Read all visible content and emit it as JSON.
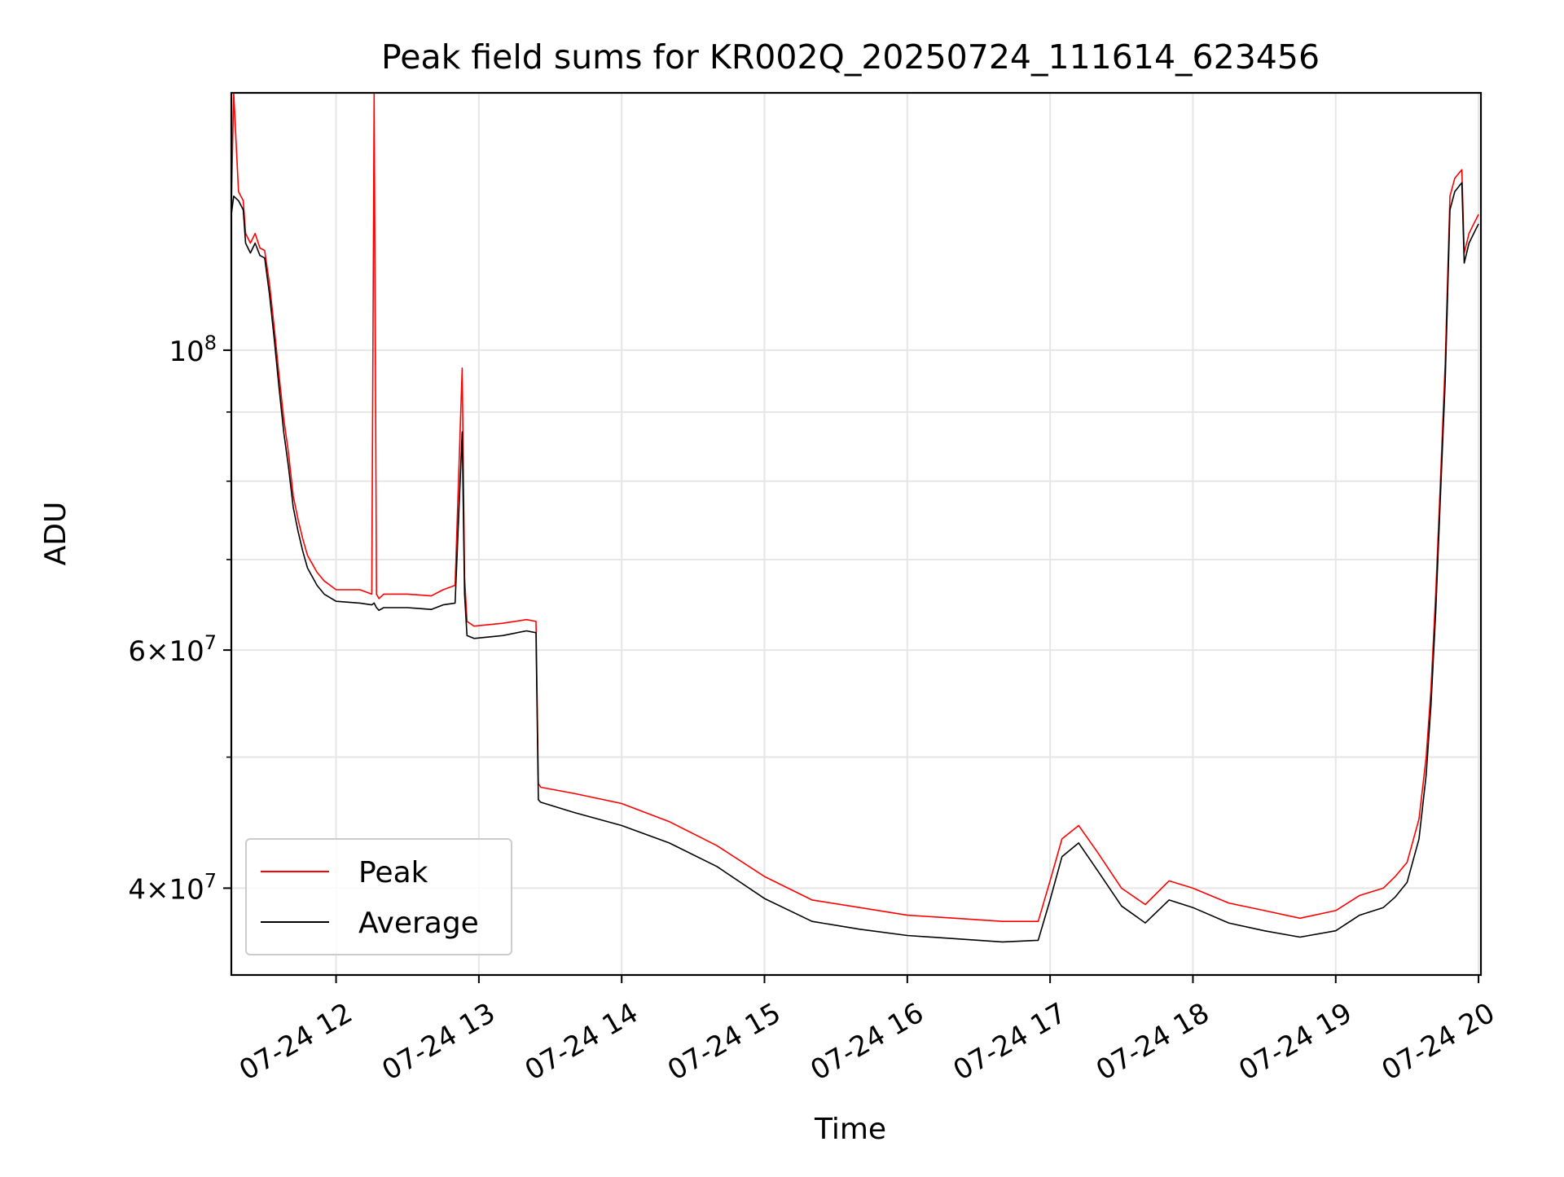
{
  "chart_data": {
    "type": "line",
    "title": "Peak field sums for KR002Q_20250724_111614_623456",
    "xlabel": "Time",
    "ylabel": "ADU",
    "yscale": "log",
    "xlim": [
      "2025-07-24 11:16",
      "2025-07-24 20:01"
    ],
    "ylim": [
      34500000,
      155000000
    ],
    "grid": true,
    "legend_position": "lower-left",
    "x_ticks": [
      {
        "value": "2025-07-24 12:00",
        "label": "07-24 12"
      },
      {
        "value": "2025-07-24 13:00",
        "label": "07-24 13"
      },
      {
        "value": "2025-07-24 14:00",
        "label": "07-24 14"
      },
      {
        "value": "2025-07-24 15:00",
        "label": "07-24 15"
      },
      {
        "value": "2025-07-24 16:00",
        "label": "07-24 16"
      },
      {
        "value": "2025-07-24 17:00",
        "label": "07-24 17"
      },
      {
        "value": "2025-07-24 18:00",
        "label": "07-24 18"
      },
      {
        "value": "2025-07-24 19:00",
        "label": "07-24 19"
      },
      {
        "value": "2025-07-24 20:00",
        "label": "07-24 20"
      }
    ],
    "y_ticks": [
      {
        "value": 40000000,
        "mantissa": "4",
        "exponent": "7"
      },
      {
        "value": 60000000,
        "mantissa": "6",
        "exponent": "7"
      },
      {
        "value": 100000000,
        "mantissa": "10",
        "exponent": "8"
      }
    ],
    "y_minor_ticks": [
      50000000,
      70000000,
      80000000,
      90000000
    ],
    "series": [
      {
        "name": "Peak",
        "color": "#ff0000",
        "x": [
          "2025-07-24 11:16",
          "2025-07-24 11:17",
          "2025-07-24 11:19",
          "2025-07-24 11:21",
          "2025-07-24 11:22",
          "2025-07-24 11:24",
          "2025-07-24 11:26",
          "2025-07-24 11:28",
          "2025-07-24 11:30",
          "2025-07-24 11:32",
          "2025-07-24 11:34",
          "2025-07-24 11:36",
          "2025-07-24 11:38",
          "2025-07-24 11:40",
          "2025-07-24 11:42",
          "2025-07-24 11:44",
          "2025-07-24 11:46",
          "2025-07-24 11:48",
          "2025-07-24 11:50",
          "2025-07-24 11:52",
          "2025-07-24 11:55",
          "2025-07-24 12:00",
          "2025-07-24 12:10",
          "2025-07-24 12:15",
          "2025-07-24 12:16",
          "2025-07-24 12:17",
          "2025-07-24 12:18",
          "2025-07-24 12:20",
          "2025-07-24 12:30",
          "2025-07-24 12:40",
          "2025-07-24 12:45",
          "2025-07-24 12:50",
          "2025-07-24 12:53",
          "2025-07-24 12:54",
          "2025-07-24 12:55",
          "2025-07-24 12:58",
          "2025-07-24 13:10",
          "2025-07-24 13:20",
          "2025-07-24 13:24",
          "2025-07-24 13:25",
          "2025-07-24 13:26",
          "2025-07-24 13:40",
          "2025-07-24 14:00",
          "2025-07-24 14:20",
          "2025-07-24 14:40",
          "2025-07-24 15:00",
          "2025-07-24 15:20",
          "2025-07-24 15:40",
          "2025-07-24 16:00",
          "2025-07-24 16:20",
          "2025-07-24 16:40",
          "2025-07-24 16:55",
          "2025-07-24 17:00",
          "2025-07-24 17:05",
          "2025-07-24 17:12",
          "2025-07-24 17:20",
          "2025-07-24 17:30",
          "2025-07-24 17:40",
          "2025-07-24 17:50",
          "2025-07-24 18:00",
          "2025-07-24 18:15",
          "2025-07-24 18:30",
          "2025-07-24 18:45",
          "2025-07-24 19:00",
          "2025-07-24 19:10",
          "2025-07-24 19:20",
          "2025-07-24 19:25",
          "2025-07-24 19:30",
          "2025-07-24 19:35",
          "2025-07-24 19:38",
          "2025-07-24 19:40",
          "2025-07-24 19:42",
          "2025-07-24 19:44",
          "2025-07-24 19:46",
          "2025-07-24 19:48",
          "2025-07-24 19:50",
          "2025-07-24 19:53",
          "2025-07-24 19:54",
          "2025-07-24 19:56",
          "2025-07-24 19:58",
          "2025-07-24 20:00"
        ],
        "y": [
          128000000,
          155000000,
          131000000,
          129000000,
          122000000,
          120000000,
          122000000,
          119000000,
          118500000,
          112000000,
          104000000,
          96000000,
          89000000,
          84000000,
          78000000,
          75000000,
          72500000,
          70500000,
          69500000,
          68500000,
          67500000,
          66500000,
          66500000,
          66000000,
          155000000,
          66000000,
          65500000,
          66000000,
          66000000,
          65800000,
          66500000,
          67000000,
          97000000,
          68000000,
          63000000,
          62500000,
          62800000,
          63200000,
          63000000,
          47800000,
          47500000,
          47000000,
          46200000,
          44800000,
          43000000,
          40800000,
          39200000,
          38700000,
          38200000,
          38000000,
          37800000,
          37800000,
          40500000,
          43500000,
          44500000,
          42500000,
          40000000,
          38900000,
          40500000,
          40000000,
          39000000,
          38500000,
          38000000,
          38500000,
          39500000,
          40000000,
          40800000,
          41800000,
          45000000,
          50000000,
          56000000,
          66000000,
          80000000,
          98000000,
          130000000,
          134000000,
          136000000,
          118000000,
          122000000,
          124000000,
          126000000
        ]
      },
      {
        "name": "Average",
        "color": "#000000",
        "x": [
          "2025-07-24 11:16",
          "2025-07-24 11:17",
          "2025-07-24 11:19",
          "2025-07-24 11:21",
          "2025-07-24 11:22",
          "2025-07-24 11:24",
          "2025-07-24 11:26",
          "2025-07-24 11:28",
          "2025-07-24 11:30",
          "2025-07-24 11:32",
          "2025-07-24 11:34",
          "2025-07-24 11:36",
          "2025-07-24 11:38",
          "2025-07-24 11:40",
          "2025-07-24 11:42",
          "2025-07-24 11:44",
          "2025-07-24 11:46",
          "2025-07-24 11:48",
          "2025-07-24 11:50",
          "2025-07-24 11:52",
          "2025-07-24 11:55",
          "2025-07-24 12:00",
          "2025-07-24 12:10",
          "2025-07-24 12:15",
          "2025-07-24 12:16",
          "2025-07-24 12:17",
          "2025-07-24 12:18",
          "2025-07-24 12:20",
          "2025-07-24 12:30",
          "2025-07-24 12:40",
          "2025-07-24 12:45",
          "2025-07-24 12:50",
          "2025-07-24 12:53",
          "2025-07-24 12:54",
          "2025-07-24 12:55",
          "2025-07-24 12:58",
          "2025-07-24 13:10",
          "2025-07-24 13:20",
          "2025-07-24 13:24",
          "2025-07-24 13:25",
          "2025-07-24 13:26",
          "2025-07-24 13:40",
          "2025-07-24 14:00",
          "2025-07-24 14:20",
          "2025-07-24 14:40",
          "2025-07-24 15:00",
          "2025-07-24 15:20",
          "2025-07-24 15:40",
          "2025-07-24 16:00",
          "2025-07-24 16:20",
          "2025-07-24 16:40",
          "2025-07-24 16:55",
          "2025-07-24 17:00",
          "2025-07-24 17:05",
          "2025-07-24 17:12",
          "2025-07-24 17:20",
          "2025-07-24 17:30",
          "2025-07-24 17:40",
          "2025-07-24 17:50",
          "2025-07-24 18:00",
          "2025-07-24 18:15",
          "2025-07-24 18:30",
          "2025-07-24 18:45",
          "2025-07-24 19:00",
          "2025-07-24 19:10",
          "2025-07-24 19:20",
          "2025-07-24 19:25",
          "2025-07-24 19:30",
          "2025-07-24 19:35",
          "2025-07-24 19:38",
          "2025-07-24 19:40",
          "2025-07-24 19:42",
          "2025-07-24 19:44",
          "2025-07-24 19:46",
          "2025-07-24 19:48",
          "2025-07-24 19:50",
          "2025-07-24 19:53",
          "2025-07-24 19:54",
          "2025-07-24 19:56",
          "2025-07-24 19:58",
          "2025-07-24 20:00"
        ],
        "y": [
          126000000,
          130000000,
          129000000,
          127000000,
          120000000,
          118000000,
          120000000,
          117500000,
          117000000,
          110000000,
          102000000,
          94000000,
          87000000,
          82000000,
          76500000,
          73500000,
          71000000,
          69000000,
          68000000,
          67000000,
          66000000,
          65200000,
          65000000,
          64800000,
          65000000,
          64500000,
          64200000,
          64500000,
          64500000,
          64300000,
          64800000,
          65000000,
          87000000,
          66000000,
          61500000,
          61200000,
          61500000,
          62000000,
          61800000,
          46500000,
          46300000,
          45500000,
          44500000,
          43200000,
          41500000,
          39300000,
          37800000,
          37300000,
          36900000,
          36700000,
          36500000,
          36600000,
          39200000,
          42200000,
          43200000,
          41200000,
          38800000,
          37700000,
          39200000,
          38700000,
          37700000,
          37200000,
          36800000,
          37200000,
          38200000,
          38700000,
          39400000,
          40400000,
          43500000,
          48500000,
          54500000,
          64000000,
          78000000,
          95000000,
          127000000,
          131000000,
          133000000,
          116000000,
          120000000,
          122000000,
          124000000
        ]
      }
    ]
  }
}
